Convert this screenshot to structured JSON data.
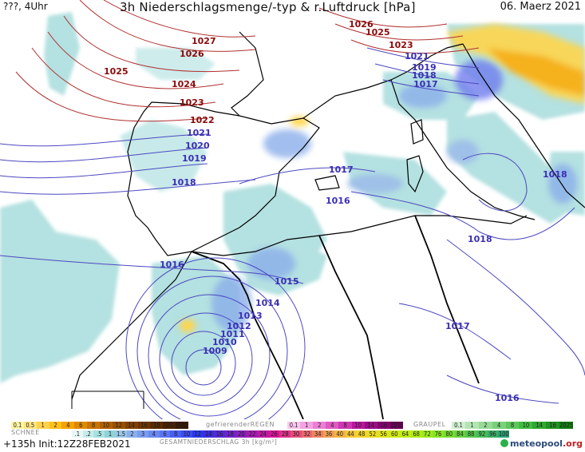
{
  "header": {
    "left": "???, 4Uhr",
    "title": "3h Niederschlagsmenge/-typ & r.Luftdruck [hPa]",
    "date": "06. Maerz 2021"
  },
  "isobars_red": [
    "1027",
    "1026",
    "1025",
    "1024",
    "1023",
    "1022",
    "1026",
    "1025",
    "1023"
  ],
  "isobars_blue": [
    "1021",
    "1020",
    "1019",
    "1018",
    "1021",
    "1019",
    "1018",
    "1017",
    "1017",
    "1016",
    "1018",
    "1018",
    "1016",
    "1015",
    "1014",
    "1013",
    "1012",
    "1011",
    "1010",
    "1009",
    "1017",
    "1016"
  ],
  "legend": {
    "snow_label": "SCHNEE",
    "snow_values": [
      "0.1",
      "0.5",
      "1",
      "2",
      "4",
      "6",
      "8",
      "10",
      "12",
      "14",
      "16",
      "18",
      "20",
      "25+"
    ],
    "freezing_label": "gefrierenderREGEN",
    "freezing_values": [
      "0.1",
      "1",
      "2",
      "4",
      "8",
      "10",
      "14",
      "16",
      "2025+"
    ],
    "graupel_label": "GRAUPEL",
    "graupel_values": [
      "0.1",
      "1",
      "2",
      "4",
      "8",
      "10",
      "14",
      "16",
      "2025+"
    ],
    "total_values": [
      ".1",
      ".2",
      ".5",
      "1",
      "1.5",
      "2",
      "3",
      "4",
      "6",
      "8",
      "10",
      "12",
      "14",
      "16",
      "18",
      "20",
      "22",
      "24",
      "26",
      "28",
      "30",
      "32",
      "34",
      "36",
      "40",
      "44",
      "48",
      "52",
      "56",
      "60",
      "64",
      "68",
      "72",
      "76",
      "80",
      "84",
      "88",
      "92",
      "96",
      "100"
    ],
    "total_label": "GESAMTNIEDERSCHLAG 3h [kg/m²]",
    "colors": {
      "snow": [
        "#fff3a0",
        "#ffe680",
        "#ffd24d",
        "#ffc01a",
        "#f5a300",
        "#e08a00",
        "#c87400",
        "#b06000",
        "#985000",
        "#804000",
        "#6b3400",
        "#582a00",
        "#452000",
        "#341800"
      ],
      "freezing": [
        "#f9c7ee",
        "#f3a3e1",
        "#ec7fd4",
        "#e05ac4",
        "#cf36b3",
        "#b8189e",
        "#9e0a86",
        "#84006e",
        "#6a0058"
      ],
      "graupel": [
        "#cfeecf",
        "#b3e5b3",
        "#96db96",
        "#79d179",
        "#5cc75c",
        "#40bd40",
        "#2ea82e",
        "#1f921f",
        "#127c12"
      ],
      "total": [
        "#e8f6f6",
        "#c8ecec",
        "#a8e2e2",
        "#8fd3d8",
        "#9ac5e6",
        "#8ab0ec",
        "#7a9cf0",
        "#6a88f2",
        "#5a74f4",
        "#4a60f4",
        "#3a4cf2",
        "#2a38ec",
        "#3a2ce0",
        "#5528d4",
        "#7024c8",
        "#8a20bc",
        "#a41cb0",
        "#be18a4",
        "#d81498",
        "#e0308a",
        "#e64c7c",
        "#ea686e",
        "#ee8460",
        "#f29f52",
        "#f4b444",
        "#f6c838",
        "#f4d42c",
        "#eadc22",
        "#dee41a",
        "#d0ea14",
        "#c0ee12",
        "#aeee14",
        "#9aea1a",
        "#88e424",
        "#76dc30",
        "#66d23e",
        "#56c84c",
        "#48bc5a",
        "#3aae66",
        "#2ea072"
      ],
      "accent_brand": "#2bb14a"
    }
  },
  "footer": {
    "run": "+135h Init:12Z28FEB2021",
    "brand": "meteopool",
    "brand_suffix": ".org"
  }
}
